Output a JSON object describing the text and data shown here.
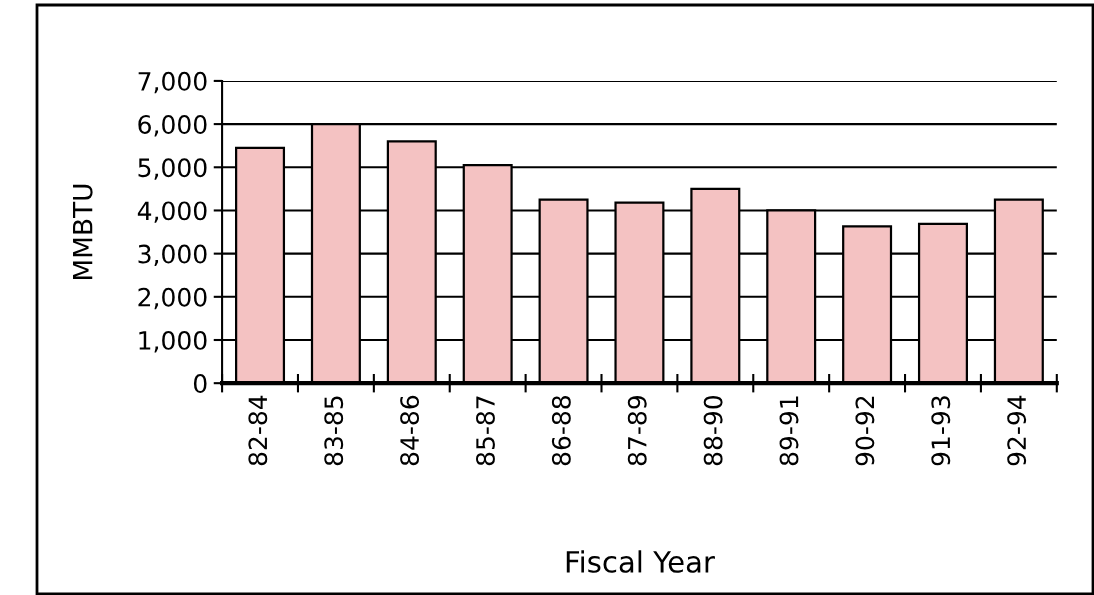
{
  "chart_data": {
    "type": "bar",
    "xlabel": "Fiscal Year",
    "ylabel": "MMBTU",
    "categories": [
      "82-84",
      "83-85",
      "84-86",
      "85-87",
      "86-88",
      "87-89",
      "88-90",
      "89-91",
      "90-92",
      "91-93",
      "92-94"
    ],
    "values": [
      5450,
      6000,
      5600,
      5050,
      4250,
      4180,
      4500,
      4000,
      3630,
      3690,
      4250
    ],
    "color": "#f4c2c2",
    "ylim": [
      0,
      7000
    ],
    "yticks": [
      {
        "value": 0,
        "label": "0"
      },
      {
        "value": 1000,
        "label": "1,000"
      },
      {
        "value": 2000,
        "label": "2,000"
      },
      {
        "value": 3000,
        "label": "3,000"
      },
      {
        "value": 4000,
        "label": "4,000"
      },
      {
        "value": 5000,
        "label": "5,000"
      },
      {
        "value": 6000,
        "label": "6,000"
      },
      {
        "value": 7000,
        "label": "7,000"
      }
    ],
    "grid": "y"
  }
}
